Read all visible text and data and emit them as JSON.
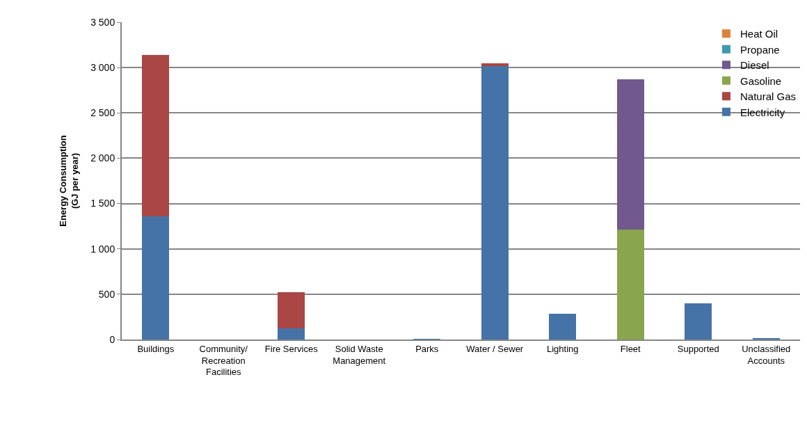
{
  "chart_data": {
    "type": "bar",
    "stacked": true,
    "ylabel": "Energy Consumption\n(GJ per year)",
    "categories": [
      "Buildings",
      "Community/\nRecreation\nFacilities",
      "Fire Services",
      "Solid Waste\nManagement",
      "Parks",
      "Water / Sewer",
      "Lighting",
      "Fleet",
      "Supported",
      "Unclassified\nAccounts"
    ],
    "series": [
      {
        "name": "Electricity",
        "color": "#4572a7",
        "values": [
          1360,
          0,
          125,
          0,
          5,
          3020,
          285,
          0,
          400,
          15
        ]
      },
      {
        "name": "Natural Gas",
        "color": "#aa4643",
        "values": [
          1780,
          0,
          400,
          0,
          0,
          25,
          0,
          0,
          0,
          0
        ]
      },
      {
        "name": "Gasoline",
        "color": "#89a54e",
        "values": [
          0,
          0,
          0,
          0,
          0,
          0,
          0,
          1215,
          0,
          0
        ]
      },
      {
        "name": "Diesel",
        "color": "#71588f",
        "values": [
          0,
          0,
          0,
          0,
          0,
          0,
          0,
          1655,
          0,
          0
        ]
      },
      {
        "name": "Propane",
        "color": "#4198af",
        "values": [
          0,
          0,
          0,
          0,
          0,
          0,
          0,
          0,
          0,
          0
        ]
      },
      {
        "name": "Heat Oil",
        "color": "#db843d",
        "values": [
          0,
          0,
          0,
          0,
          0,
          0,
          0,
          0,
          0,
          0
        ]
      }
    ],
    "ylim": [
      0,
      3500
    ],
    "yticks": [
      0,
      {
        "value": 500,
        "label": "500"
      },
      {
        "value": 1000,
        "label": "1 000"
      },
      {
        "value": 1500,
        "label": "1 500"
      },
      {
        "value": 2000,
        "label": "2 000"
      },
      {
        "value": 2500,
        "label": "2 500"
      },
      {
        "value": 3000,
        "label": "3 000"
      },
      {
        "value": 3500,
        "label": "3 500"
      }
    ],
    "grid": "y",
    "legend": "top right"
  }
}
